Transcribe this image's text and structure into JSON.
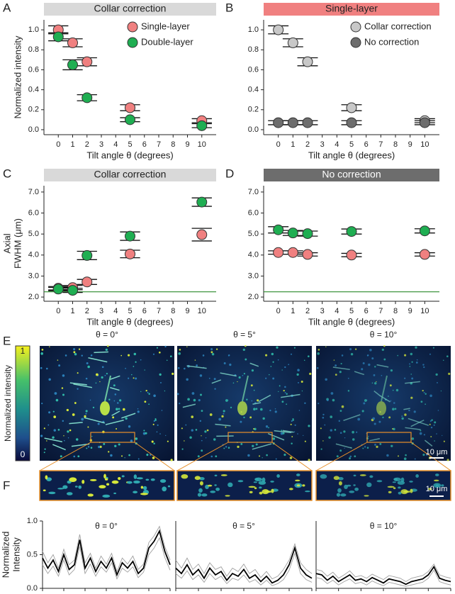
{
  "panel_labels": [
    "A",
    "B",
    "C",
    "D",
    "E",
    "F"
  ],
  "images": {
    "titles": [
      "θ = 0°",
      "θ = 5°",
      "θ = 10°"
    ],
    "colorbar": {
      "max": "1",
      "min": "0",
      "label": "Normalized intensity"
    },
    "scale_bars": [
      "10 μm",
      "10 μm"
    ]
  },
  "chart_data": [
    {
      "type": "scatter",
      "title": "Collar correction",
      "title_bg": "#d9d9d9",
      "title_color": "#222222",
      "x": [
        0,
        1,
        2,
        5,
        10
      ],
      "xlim": [
        -1,
        11
      ],
      "xticks": [
        0,
        1,
        2,
        3,
        4,
        5,
        6,
        7,
        8,
        9,
        10
      ],
      "xlabel": "Tilt angle θ (degrees)",
      "ylim": [
        -0.05,
        1.1
      ],
      "yticks": [
        {
          "value": 0,
          "label": "0.0"
        },
        0.2,
        0.4,
        0.6,
        0.8,
        {
          "value": 1,
          "label": "1.0"
        }
      ],
      "ylabel": [
        "Normalized intensity"
      ],
      "legend": "upper right",
      "series": [
        {
          "name": "Single-layer",
          "color": "#f08080",
          "values": [
            1.0,
            0.87,
            0.68,
            0.22,
            0.09
          ],
          "errors": [
            0.04,
            0.04,
            0.04,
            0.03,
            0.02
          ]
        },
        {
          "name": "Double-layer",
          "color": "#1fae52",
          "values": [
            0.93,
            0.65,
            0.32,
            0.1,
            0.04
          ],
          "errors": [
            0.04,
            0.05,
            0.03,
            0.02,
            0.02
          ]
        }
      ]
    },
    {
      "type": "scatter",
      "title": "Single-layer",
      "title_bg": "#f08080",
      "title_color": "#222222",
      "x": [
        0,
        1,
        2,
        5,
        10
      ],
      "xlim": [
        -1,
        11
      ],
      "xticks": [
        0,
        1,
        2,
        3,
        4,
        5,
        6,
        7,
        8,
        9,
        10
      ],
      "xlabel": "Tilt angle θ (degrees)",
      "ylim": [
        -0.05,
        1.1
      ],
      "yticks": [
        {
          "value": 0,
          "label": "0.0"
        },
        0.2,
        0.4,
        0.6,
        0.8,
        {
          "value": 1,
          "label": "1.0"
        }
      ],
      "legend": "upper right",
      "series": [
        {
          "name": "Collar correction",
          "color": "#c8c8c8",
          "values": [
            1.0,
            0.87,
            0.68,
            0.22,
            0.09
          ],
          "errors": [
            0.04,
            0.04,
            0.04,
            0.03,
            0.02
          ]
        },
        {
          "name": "No correction",
          "color": "#6d6d6d",
          "values": [
            0.07,
            0.07,
            0.07,
            0.07,
            0.07
          ],
          "errors": [
            0.02,
            0.02,
            0.02,
            0.02,
            0.02
          ]
        }
      ]
    },
    {
      "type": "scatter",
      "title": "Collar correction",
      "title_bg": "#d9d9d9",
      "title_color": "#222222",
      "x": [
        0,
        1,
        2,
        5,
        10
      ],
      "xlim": [
        -1,
        11
      ],
      "xticks": [
        0,
        1,
        2,
        3,
        4,
        5,
        6,
        7,
        8,
        9,
        10
      ],
      "xlabel": "Tilt angle θ (degrees)",
      "ylim": [
        1.8,
        7.3
      ],
      "yticks": [
        {
          "value": 2,
          "label": "2.0"
        },
        {
          "value": 3,
          "label": "3.0"
        },
        {
          "value": 4,
          "label": "4.0"
        },
        {
          "value": 5,
          "label": "5.0"
        },
        {
          "value": 6,
          "label": "6.0"
        },
        {
          "value": 7,
          "label": "7.0"
        }
      ],
      "ylabel": [
        "Axial",
        "FWHM (μm)"
      ],
      "hline": 2.25,
      "hline_color": "#2a8a2a",
      "series": [
        {
          "color": "#f08080",
          "values": [
            2.42,
            2.45,
            2.72,
            4.05,
            4.97
          ],
          "errors": [
            0.08,
            0.1,
            0.12,
            0.18,
            0.3
          ]
        },
        {
          "color": "#1fae52",
          "values": [
            2.38,
            2.32,
            3.98,
            4.9,
            6.52
          ],
          "errors": [
            0.08,
            0.1,
            0.2,
            0.2,
            0.2
          ]
        }
      ]
    },
    {
      "type": "scatter",
      "title": "No correction",
      "title_bg": "#6d6d6d",
      "title_color": "#ffffff",
      "x": [
        0,
        1,
        2,
        5,
        10
      ],
      "xlim": [
        -1,
        11
      ],
      "xticks": [
        0,
        1,
        2,
        3,
        4,
        5,
        6,
        7,
        8,
        9,
        10
      ],
      "xlabel": "Tilt angle θ (degrees)",
      "ylim": [
        1.8,
        7.3
      ],
      "yticks": [
        {
          "value": 2,
          "label": "2.0"
        },
        {
          "value": 3,
          "label": "3.0"
        },
        {
          "value": 4,
          "label": "4.0"
        },
        {
          "value": 5,
          "label": "5.0"
        },
        {
          "value": 6,
          "label": "6.0"
        },
        {
          "value": 7,
          "label": "7.0"
        }
      ],
      "hline": 2.25,
      "hline_color": "#2a8a2a",
      "series": [
        {
          "color": "#f08080",
          "values": [
            4.12,
            4.12,
            4.03,
            4.0,
            4.03
          ],
          "errors": [
            0.08,
            0.08,
            0.08,
            0.08,
            0.08
          ]
        },
        {
          "color": "#1fae52",
          "values": [
            5.2,
            5.05,
            5.02,
            5.12,
            5.15
          ],
          "errors": [
            0.15,
            0.12,
            0.12,
            0.12,
            0.1
          ]
        }
      ]
    },
    {
      "type": "line",
      "title": "θ = 0°",
      "xlim": [
        0,
        24
      ],
      "ylim": [
        0,
        1
      ],
      "yticks": [
        {
          "value": 0,
          "label": "0.0"
        },
        {
          "value": 0.5,
          "label": "0.5"
        },
        {
          "value": 1,
          "label": "1.0"
        }
      ],
      "ylabel": [
        "Normalized",
        "Intensity"
      ],
      "series": [
        {
          "color": "#a0a0a0",
          "values": [
            0.55,
            0.38,
            0.5,
            0.3,
            0.58,
            0.35,
            0.42,
            0.8,
            0.38,
            0.52,
            0.3,
            0.48,
            0.36,
            0.52,
            0.25,
            0.45,
            0.36,
            0.48,
            0.28,
            0.36,
            0.68,
            0.78,
            0.92,
            0.62,
            0.42
          ]
        },
        {
          "color": "#a0a0a0",
          "values": [
            0.35,
            0.22,
            0.33,
            0.18,
            0.42,
            0.2,
            0.28,
            0.62,
            0.22,
            0.36,
            0.18,
            0.32,
            0.24,
            0.38,
            0.14,
            0.3,
            0.24,
            0.32,
            0.16,
            0.24,
            0.5,
            0.6,
            0.75,
            0.46,
            0.27
          ]
        },
        {
          "color": "#000000",
          "values": [
            0.45,
            0.3,
            0.42,
            0.25,
            0.5,
            0.28,
            0.35,
            0.72,
            0.3,
            0.45,
            0.25,
            0.4,
            0.3,
            0.45,
            0.2,
            0.38,
            0.3,
            0.4,
            0.22,
            0.3,
            0.6,
            0.7,
            0.85,
            0.55,
            0.35
          ]
        }
      ]
    },
    {
      "type": "line",
      "title": "θ = 5°",
      "xlim": [
        0,
        24
      ],
      "ylim": [
        0,
        1
      ],
      "series": [
        {
          "color": "#a0a0a0",
          "values": [
            0.42,
            0.3,
            0.45,
            0.28,
            0.36,
            0.22,
            0.38,
            0.28,
            0.32,
            0.18,
            0.3,
            0.25,
            0.36,
            0.22,
            0.28,
            0.16,
            0.25,
            0.14,
            0.18,
            0.28,
            0.42,
            0.66,
            0.38,
            0.28,
            0.22
          ]
        },
        {
          "color": "#a0a0a0",
          "values": [
            0.22,
            0.15,
            0.26,
            0.13,
            0.2,
            0.09,
            0.22,
            0.13,
            0.18,
            0.07,
            0.15,
            0.12,
            0.2,
            0.09,
            0.13,
            0.05,
            0.12,
            0.04,
            0.07,
            0.13,
            0.27,
            0.52,
            0.22,
            0.13,
            0.09
          ]
        },
        {
          "color": "#000000",
          "values": [
            0.3,
            0.22,
            0.35,
            0.2,
            0.28,
            0.15,
            0.3,
            0.2,
            0.25,
            0.12,
            0.22,
            0.18,
            0.28,
            0.15,
            0.2,
            0.1,
            0.18,
            0.08,
            0.12,
            0.2,
            0.35,
            0.6,
            0.3,
            0.2,
            0.15
          ]
        }
      ]
    },
    {
      "type": "line",
      "title": "θ = 10°",
      "xlim": [
        0,
        24
      ],
      "ylim": [
        0,
        1
      ],
      "series": [
        {
          "color": "#a0a0a0",
          "values": [
            0.28,
            0.26,
            0.18,
            0.24,
            0.15,
            0.2,
            0.26,
            0.17,
            0.19,
            0.15,
            0.21,
            0.17,
            0.13,
            0.19,
            0.17,
            0.15,
            0.1,
            0.15,
            0.17,
            0.19,
            0.25,
            0.36,
            0.2,
            0.17,
            0.15
          ]
        },
        {
          "color": "#a0a0a0",
          "values": [
            0.16,
            0.14,
            0.07,
            0.12,
            0.05,
            0.1,
            0.14,
            0.07,
            0.09,
            0.05,
            0.11,
            0.07,
            0.04,
            0.09,
            0.07,
            0.05,
            0.03,
            0.05,
            0.07,
            0.09,
            0.15,
            0.27,
            0.1,
            0.07,
            0.05
          ]
        },
        {
          "color": "#000000",
          "values": [
            0.22,
            0.2,
            0.12,
            0.18,
            0.1,
            0.15,
            0.2,
            0.12,
            0.14,
            0.1,
            0.16,
            0.12,
            0.08,
            0.14,
            0.12,
            0.1,
            0.06,
            0.1,
            0.12,
            0.14,
            0.2,
            0.32,
            0.15,
            0.12,
            0.1
          ]
        }
      ]
    }
  ]
}
